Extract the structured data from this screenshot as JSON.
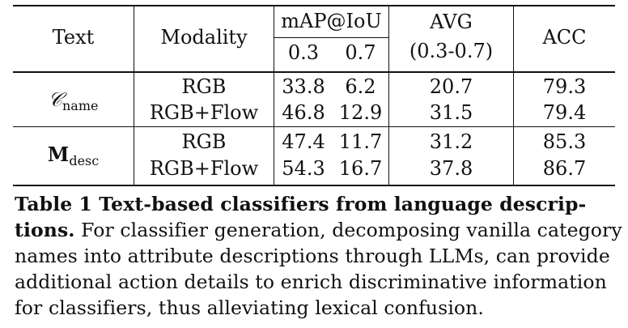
{
  "table": {
    "headers": {
      "text": "Text",
      "modality": "Modality",
      "map": "mAP@IoU",
      "map_03": "0.3",
      "map_07": "0.7",
      "avg": "AVG",
      "avg_range": "(0.3-0.7)",
      "acc": "ACC"
    },
    "groups": [
      {
        "text_main": "𝒞",
        "text_sub": "name",
        "rows": [
          {
            "modality": "RGB",
            "map_03": "33.8",
            "map_07": "6.2",
            "avg": "20.7",
            "acc": "79.3"
          },
          {
            "modality": "RGB+Flow",
            "map_03": "46.8",
            "map_07": "12.9",
            "avg": "31.5",
            "acc": "79.4"
          }
        ]
      },
      {
        "text_main": "M",
        "text_sub": "desc",
        "rows": [
          {
            "modality": "RGB",
            "map_03": "47.4",
            "map_07": "11.7",
            "avg": "31.2",
            "acc": "85.3"
          },
          {
            "modality": "RGB+Flow",
            "map_03": "54.3",
            "map_07": "16.7",
            "avg": "37.8",
            "acc": "86.7"
          }
        ]
      }
    ]
  },
  "caption": {
    "line1": "Table 1  Text-based classifiers from language descrip-",
    "line2_bold": "tions.",
    "line2_rest": " For classifier generation, decomposing vanilla category",
    "line3": "names into attribute descriptions through LLMs, can provide",
    "line4": "additional action details to enrich discriminative information",
    "line5": "for classifiers, thus alleviating lexical confusion."
  }
}
